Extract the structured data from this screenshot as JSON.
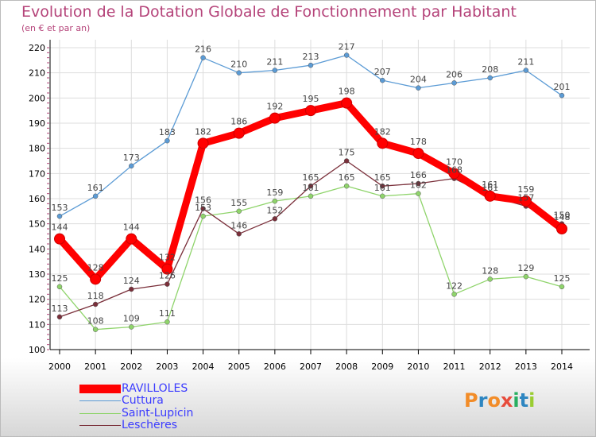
{
  "title": "Evolution de la Dotation Globale de Fonctionnement par Habitant",
  "subtitle": "(en € et par an)",
  "logo": {
    "text": "Proxiti",
    "colors": [
      "#f28c28",
      "#2e86c1",
      "#f28c28",
      "#e74c3c",
      "#27ae60",
      "#2e86c1",
      "#9acd32"
    ]
  },
  "colors": {
    "title": "#b5447a",
    "legend_text": "#3b3bff",
    "axis": "#000000",
    "grid": "#dddddd",
    "background_top": "#ffffff",
    "background_bottom": "#d6d6d6"
  },
  "chart_data": {
    "type": "line",
    "title": "Evolution de la Dotation Globale de Fonctionnement par Habitant",
    "subtitle": "(en € et par an)",
    "x": [
      2000,
      2001,
      2002,
      2003,
      2004,
      2005,
      2006,
      2007,
      2008,
      2009,
      2010,
      2011,
      2012,
      2013,
      2014
    ],
    "x_tick_labels": [
      "2000",
      "2001",
      "2002",
      "2003",
      "2004",
      "2005",
      "2006",
      "2007",
      "2008",
      "2009",
      "2010",
      "2011",
      "2012",
      "2013",
      "2014"
    ],
    "ylim": [
      100,
      220
    ],
    "y_ticks": [
      100,
      110,
      120,
      130,
      140,
      150,
      160,
      170,
      180,
      190,
      200,
      210,
      220
    ],
    "grid": true,
    "legend_position": "bottom-left",
    "series": [
      {
        "name": "RAVILLOLES",
        "color": "#ff0000",
        "highlight": true,
        "values": [
          144,
          128,
          144,
          132,
          182,
          186,
          192,
          195,
          198,
          182,
          178,
          170,
          161,
          159,
          148
        ]
      },
      {
        "name": "Cuttura",
        "color": "#5b9bd5",
        "highlight": false,
        "values": [
          153,
          161,
          173,
          183,
          216,
          210,
          211,
          213,
          217,
          207,
          204,
          206,
          208,
          211,
          201
        ]
      },
      {
        "name": "Saint-Lupicin",
        "color": "#8fd46b",
        "highlight": false,
        "values": [
          125,
          108,
          109,
          111,
          153,
          155,
          159,
          161,
          165,
          161,
          162,
          122,
          128,
          129,
          125
        ]
      },
      {
        "name": "Leschères",
        "color": "#7a2f3a",
        "highlight": false,
        "values": [
          113,
          118,
          124,
          126,
          156,
          146,
          152,
          165,
          175,
          165,
          166,
          168,
          161,
          157,
          150
        ]
      }
    ]
  }
}
